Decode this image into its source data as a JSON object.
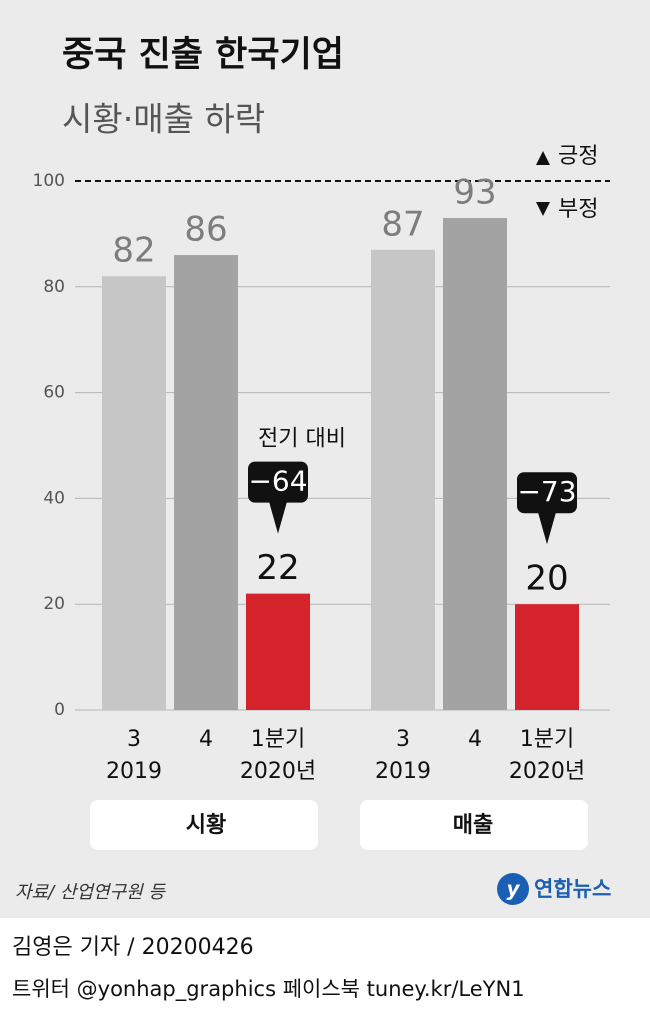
{
  "chart_data": {
    "type": "grouped-bar",
    "title": "중국 진출 한국기업",
    "subtitle": "시황·매출 하락",
    "categories": [
      "3",
      "4",
      "1분기"
    ],
    "category_years": [
      "2019",
      null,
      "2020년"
    ],
    "colors": [
      "#c6c6c6",
      "#a3a3a4",
      "#d5232b"
    ],
    "groups": [
      {
        "name": "시황",
        "values": [
          82,
          86,
          22
        ],
        "change": {
          "value": -64,
          "label": "−64"
        }
      },
      {
        "name": "매출",
        "values": [
          87,
          93,
          20
        ],
        "change": {
          "value": -73,
          "label": "−73"
        }
      }
    ],
    "change_note": "전기 대비",
    "ylim": [
      0,
      100
    ],
    "yticks": [
      0,
      20,
      40,
      60,
      80,
      100
    ],
    "grid": true,
    "reference": {
      "value": 100,
      "above": "긍정",
      "below": "부정"
    },
    "source": "자료/ 산업연구원 등",
    "logo": "연합뉴스"
  },
  "footer": {
    "byline": "김영은 기자 / 20200426",
    "links": "트위터 @yonhap_graphics  페이스북 tuney.kr/LeYN1"
  }
}
